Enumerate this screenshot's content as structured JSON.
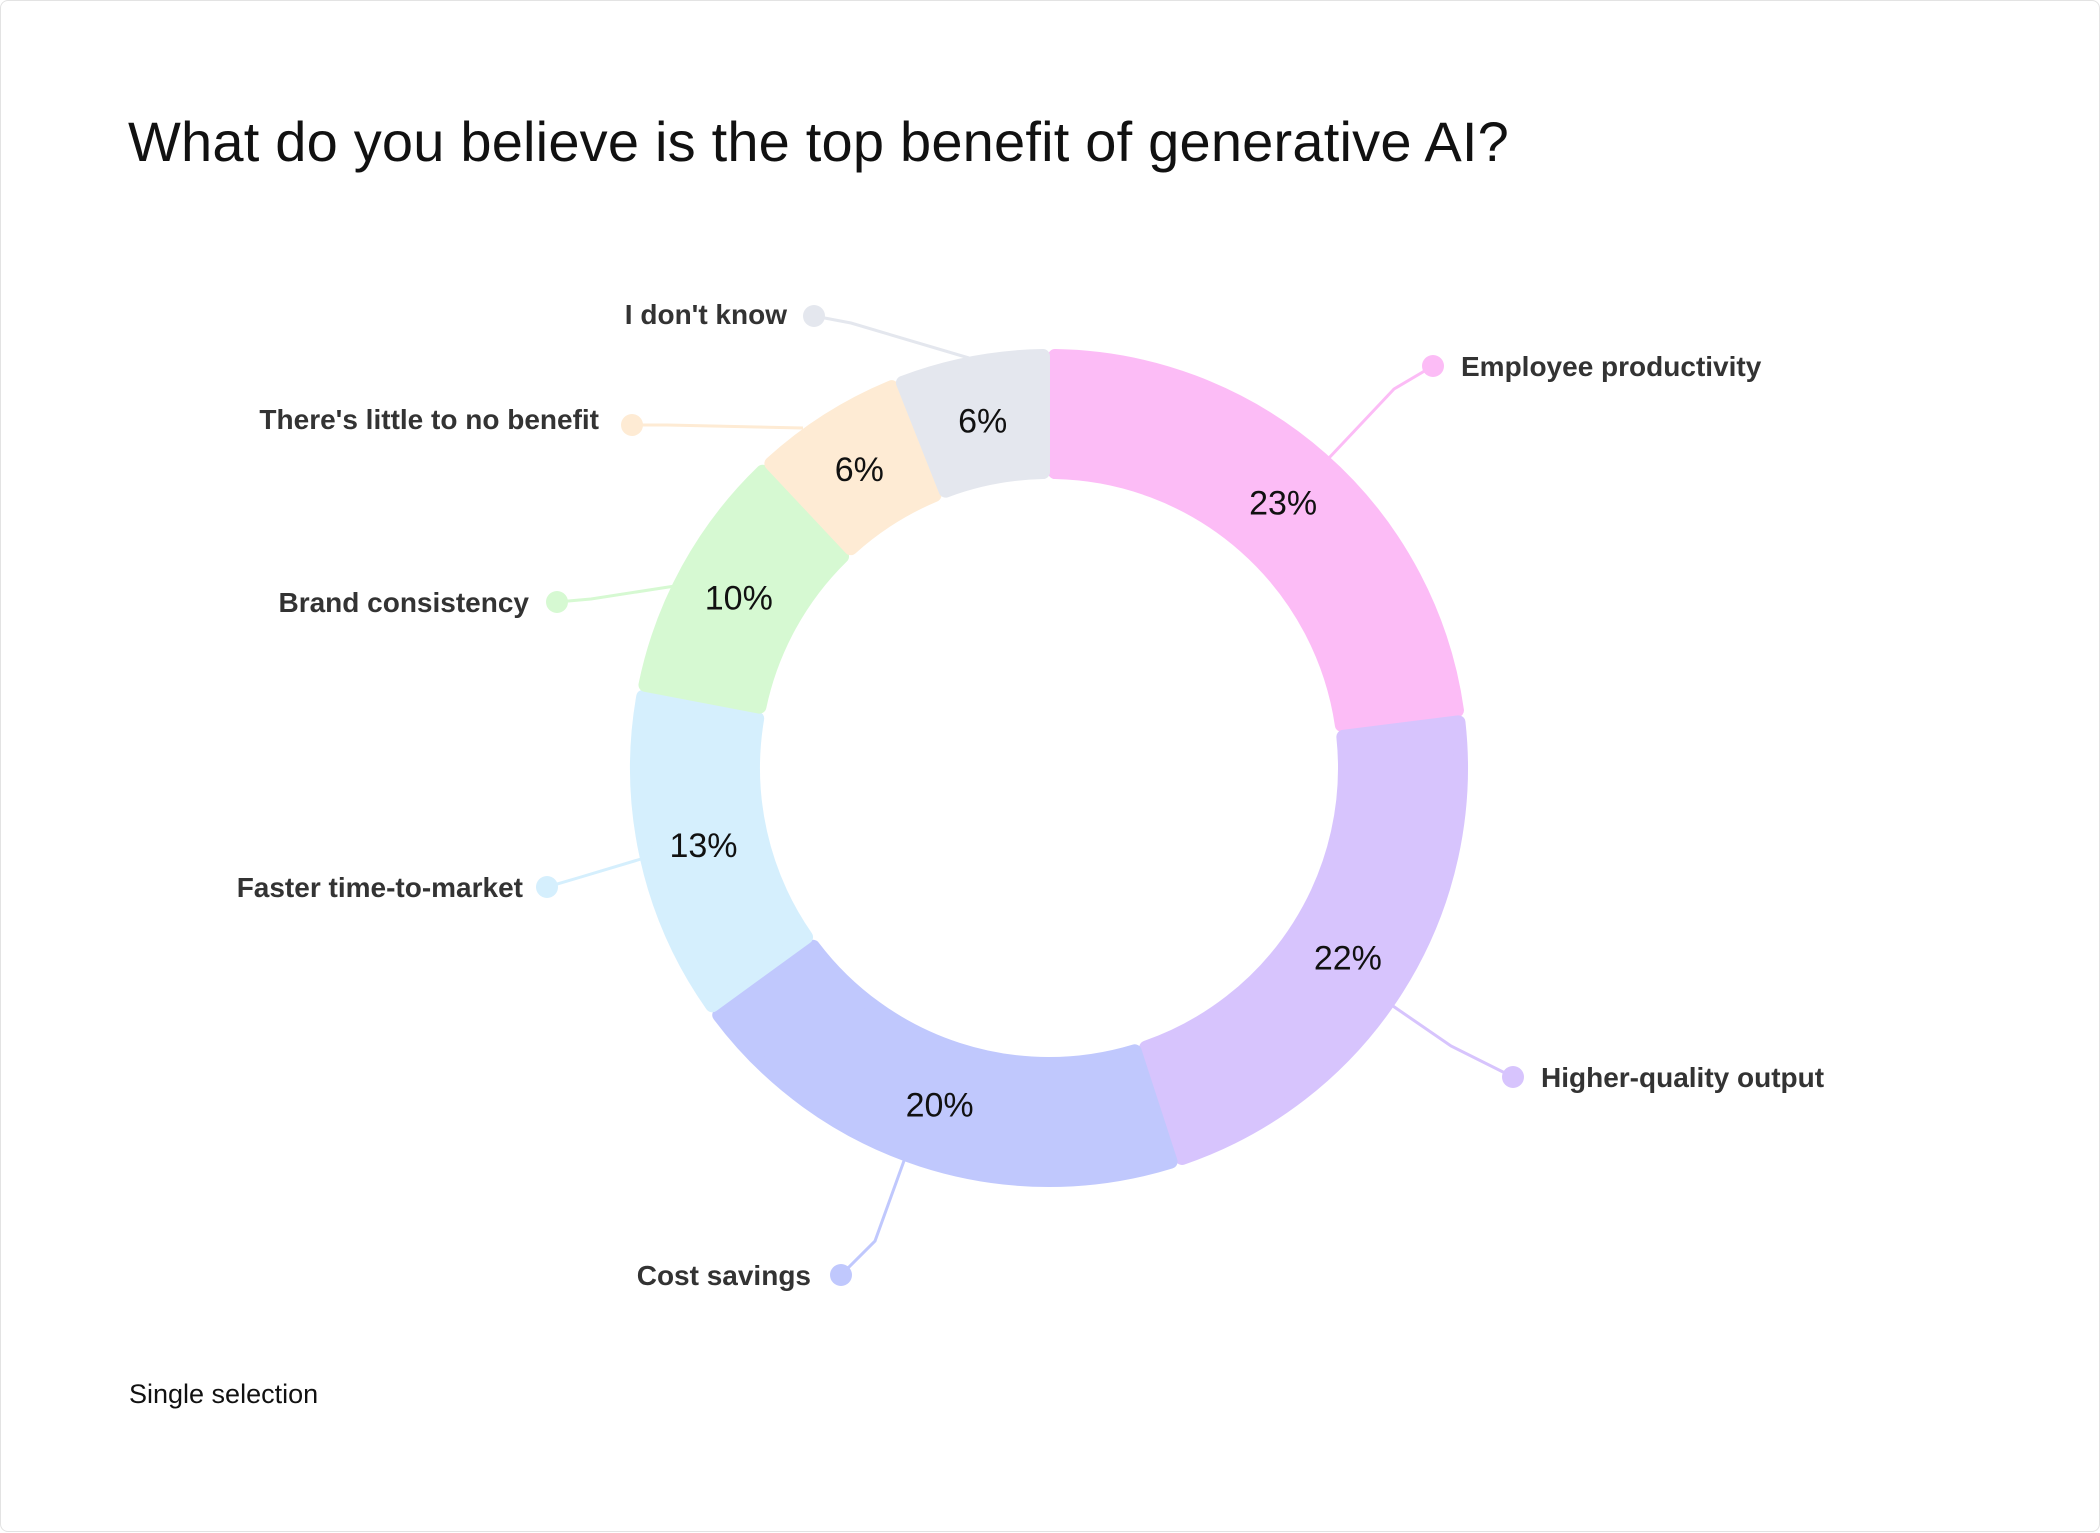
{
  "title": "What do you believe is the top benefit of generative AI?",
  "footnote": "Single selection",
  "chart_data": {
    "type": "pie",
    "donut": true,
    "title": "What do you believe is the top benefit of generative AI?",
    "unit": "%",
    "slices": [
      {
        "label": "Employee productivity",
        "value": 23,
        "display": "23%",
        "color": "#fcbcf6"
      },
      {
        "label": "Higher-quality output",
        "value": 22,
        "display": "22%",
        "color": "#d7c4fd"
      },
      {
        "label": "Cost savings",
        "value": 20,
        "display": "20%",
        "color": "#c0c8fd"
      },
      {
        "label": "Faster time-to-market",
        "value": 13,
        "display": "13%",
        "color": "#d5effd"
      },
      {
        "label": "Brand consistency",
        "value": 10,
        "display": "10%",
        "color": "#d6f9d2"
      },
      {
        "label": "There's little to no benefit",
        "value": 6,
        "display": "6%",
        "color": "#feebd4"
      },
      {
        "label": "I don't know",
        "value": 6,
        "display": "6%",
        "color": "#e4e7ee"
      }
    ]
  }
}
